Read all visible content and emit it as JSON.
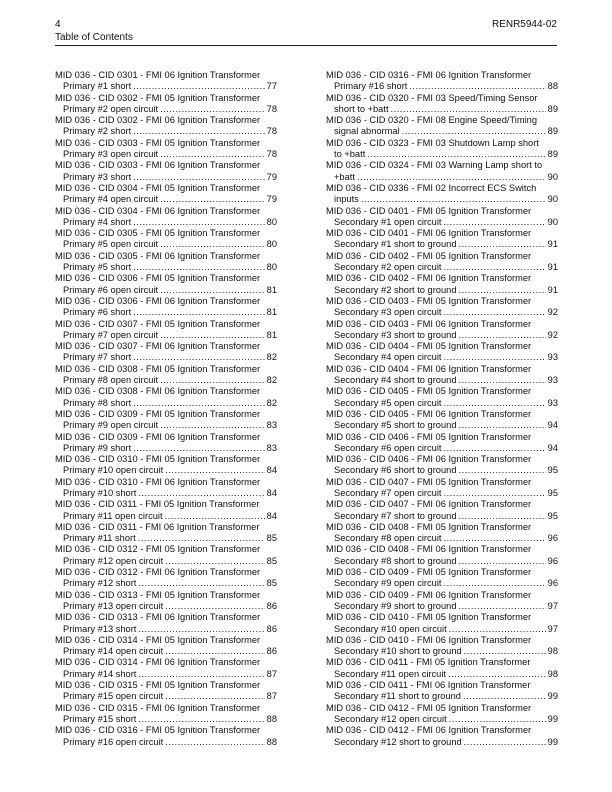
{
  "header": {
    "page_number": "4",
    "doc_id": "RENR5944-02",
    "section": "Table of Contents"
  },
  "columns": [
    [
      {
        "title": "MID 036 - CID 0301 - FMI 06 Ignition Transformer",
        "subtitle": "Primary #1 short",
        "page": 77
      },
      {
        "title": "MID 036 - CID 0302 - FMI 05 Ignition Transformer",
        "subtitle": "Primary #2 open circuit",
        "page": 78
      },
      {
        "title": "MID 036 - CID 0302 - FMI 06 Ignition Transformer",
        "subtitle": "Primary #2 short",
        "page": 78
      },
      {
        "title": "MID 036 - CID 0303 - FMI 05 Ignition Transformer",
        "subtitle": "Primary #3 open circuit",
        "page": 78
      },
      {
        "title": "MID 036 - CID 0303 - FMI 06 Ignition Transformer",
        "subtitle": "Primary #3 short",
        "page": 79
      },
      {
        "title": "MID 036 - CID 0304 - FMI 05 Ignition Transformer",
        "subtitle": "Primary #4 open circuit",
        "page": 79
      },
      {
        "title": "MID 036 - CID 0304 - FMI 06 Ignition Transformer",
        "subtitle": "Primary #4 short",
        "page": 80
      },
      {
        "title": "MID 036 - CID 0305 - FMI 05 Ignition Transformer",
        "subtitle": "Primary #5 open circuit",
        "page": 80
      },
      {
        "title": "MID 036 - CID 0305 - FMI 06 Ignition Transformer",
        "subtitle": "Primary #5 short",
        "page": 80
      },
      {
        "title": "MID 036 - CID 0306 - FMI 05 Ignition Transformer",
        "subtitle": "Primary #6 open circuit",
        "page": 81
      },
      {
        "title": "MID 036 - CID 0306 - FMI 06 Ignition Transformer",
        "subtitle": "Primary #6 short",
        "page": 81
      },
      {
        "title": "MID 036 - CID 0307 - FMI 05 Ignition Transformer",
        "subtitle": "Primary #7 open circuit",
        "page": 81
      },
      {
        "title": "MID 036 - CID 0307 - FMI 06 Ignition Transformer",
        "subtitle": "Primary #7 short",
        "page": 82
      },
      {
        "title": "MID 036 - CID 0308 - FMI 05 Ignition Transformer",
        "subtitle": "Primary #8 open circuit",
        "page": 82
      },
      {
        "title": "MID 036 - CID 0308 - FMI 06 Ignition Transformer",
        "subtitle": "Primary #8 short",
        "page": 82
      },
      {
        "title": "MID 036 - CID 0309 - FMI 05 Ignition Transformer",
        "subtitle": "Primary #9 open circuit",
        "page": 83
      },
      {
        "title": "MID 036 - CID 0309 - FMI 06 Ignition Transformer",
        "subtitle": "Primary #9 short",
        "page": 83
      },
      {
        "title": "MID 036 - CID 0310 - FMI 05 Ignition Transformer",
        "subtitle": "Primary #10 open circuit",
        "page": 84
      },
      {
        "title": "MID 036 - CID 0310 - FMI 06 Ignition Transformer",
        "subtitle": "Primary #10 short",
        "page": 84
      },
      {
        "title": "MID 036 - CID 0311 - FMI 05 Ignition Transformer",
        "subtitle": "Primary #11 open circuit",
        "page": 84
      },
      {
        "title": "MID 036 - CID 0311 - FMI 06 Ignition Transformer",
        "subtitle": "Primary #11 short",
        "page": 85
      },
      {
        "title": "MID 036 - CID 0312 - FMI 05 Ignition Transformer",
        "subtitle": "Primary #12 open circuit",
        "page": 85
      },
      {
        "title": "MID 036 - CID 0312 - FMI 06 Ignition Transformer",
        "subtitle": "Primary #12 short",
        "page": 85
      },
      {
        "title": "MID 036 - CID 0313 - FMI 05 Ignition Transformer",
        "subtitle": "Primary #13 open circuit",
        "page": 86
      },
      {
        "title": "MID 036 - CID 0313 - FMI 06 Ignition Transformer",
        "subtitle": "Primary #13 short",
        "page": 86
      },
      {
        "title": "MID 036 - CID 0314 - FMI 05 Ignition Transformer",
        "subtitle": "Primary #14 open circuit",
        "page": 86
      },
      {
        "title": "MID 036 - CID 0314 - FMI 06 Ignition Transformer",
        "subtitle": "Primary #14 short",
        "page": 87
      },
      {
        "title": "MID 036 - CID 0315 - FMI 05 Ignition Transformer",
        "subtitle": "Primary #15 open circuit",
        "page": 87
      },
      {
        "title": "MID 036 - CID 0315 - FMI 06 Ignition Transformer",
        "subtitle": "Primary #15 short",
        "page": 88
      },
      {
        "title": "MID 036 - CID 0316 - FMI 05 Ignition Transformer",
        "subtitle": "Primary #16 open circuit",
        "page": 88
      }
    ],
    [
      {
        "title": "MID 036 - CID 0316 - FMI 06 Ignition Transformer",
        "subtitle": "Primary #16 short",
        "page": 88
      },
      {
        "title": "MID 036 - CID 0320 - FMI 03 Speed/Timing Sensor",
        "subtitle": "short to +batt",
        "page": 89
      },
      {
        "title": "MID 036 - CID 0320 - FMI 08 Engine Speed/Timing",
        "subtitle": "signal abnormal",
        "page": 89
      },
      {
        "title": "MID 036 - CID 0323 - FMI 03 Shutdown Lamp short",
        "subtitle": "to +batt",
        "page": 89
      },
      {
        "title": "MID 036 - CID 0324 - FMI 03 Warning Lamp short to",
        "subtitle": "+batt",
        "page": 90
      },
      {
        "title": "MID 036 - CID 0336 - FMI 02 Incorrect ECS Switch",
        "subtitle": "inputs",
        "page": 90
      },
      {
        "title": "MID 036 - CID 0401 - FMI 05 Ignition Transformer",
        "subtitle": "Secondary #1 open circuit",
        "page": 90
      },
      {
        "title": "MID 036 - CID 0401 - FMI 06 Ignition Transformer",
        "subtitle": "Secondary #1 short to ground",
        "page": 91
      },
      {
        "title": "MID 036 - CID 0402 - FMI 05 Ignition Transformer",
        "subtitle": "Secondary #2 open circuit",
        "page": 91
      },
      {
        "title": "MID 036 - CID 0402 - FMI 06 Ignition Transformer",
        "subtitle": "Secondary #2 short to ground",
        "page": 91
      },
      {
        "title": "MID 036 - CID 0403 - FMI 05 Ignition Transformer",
        "subtitle": "Secondary #3 open circuit",
        "page": 92
      },
      {
        "title": "MID 036 - CID 0403 - FMI 06 Ignition Transformer",
        "subtitle": "Secondary #3 short to ground",
        "page": 92
      },
      {
        "title": "MID 036 - CID 0404 - FMI 05 Ignition Transformer",
        "subtitle": "Secondary #4 open circuit",
        "page": 93
      },
      {
        "title": "MID 036 - CID 0404 - FMI 06 Ignition Transformer",
        "subtitle": "Secondary #4 short to ground",
        "page": 93
      },
      {
        "title": "MID 036 - CID 0405 - FMI 05 Ignition Transformer",
        "subtitle": "Secondary #5 open circuit",
        "page": 93
      },
      {
        "title": "MID 036 - CID 0405 - FMI 06 Ignition Transformer",
        "subtitle": "Secondary #5 short to ground",
        "page": 94
      },
      {
        "title": "MID 036 - CID 0406 - FMI 05 Ignition Transformer",
        "subtitle": "Secondary #6 open circuit",
        "page": 94
      },
      {
        "title": "MID 036 - CID 0406 - FMI 06 Ignition Transformer",
        "subtitle": "Secondary #6 short to ground",
        "page": 95
      },
      {
        "title": "MID 036 - CID 0407 - FMI 05 Ignition Transformer",
        "subtitle": "Secondary #7 open circuit",
        "page": 95
      },
      {
        "title": "MID 036 - CID 0407 - FMI 06 Ignition Transformer",
        "subtitle": "Secondary #7 short to ground",
        "page": 95
      },
      {
        "title": "MID 036 - CID 0408 - FMI 05 Ignition Transformer",
        "subtitle": "Secondary #8 open circuit",
        "page": 96
      },
      {
        "title": "MID 036 - CID 0408 - FMI 06 Ignition Transformer",
        "subtitle": "Secondary #8 short to ground",
        "page": 96
      },
      {
        "title": "MID 036 - CID 0409 - FMI 05 Ignition Transformer",
        "subtitle": "Secondary #9 open circuit",
        "page": 96
      },
      {
        "title": "MID 036 - CID 0409 - FMI 06 Ignition Transformer",
        "subtitle": "Secondary #9 short to ground",
        "page": 97
      },
      {
        "title": "MID 036 - CID 0410 - FMI 05 Ignition Transformer",
        "subtitle": "Secondary #10 open circuit",
        "page": 97
      },
      {
        "title": "MID 036 - CID 0410 - FMI 06 Ignition Transformer",
        "subtitle": "Secondary #10 short to ground",
        "page": 98
      },
      {
        "title": "MID 036 - CID 0411 - FMI 05 Ignition Transformer",
        "subtitle": "Secondary #11 open circuit",
        "page": 98
      },
      {
        "title": "MID 036 - CID 0411 - FMI 06 Ignition Transformer",
        "subtitle": "Secondary #11 short to ground",
        "page": 99
      },
      {
        "title": "MID 036 - CID 0412 - FMI 05 Ignition Transformer",
        "subtitle": "Secondary #12 open circuit",
        "page": 99
      },
      {
        "title": "MID 036 - CID 0412 - FMI 06 Ignition Transformer",
        "subtitle": "Secondary #12 short to ground",
        "page": 99
      }
    ]
  ]
}
